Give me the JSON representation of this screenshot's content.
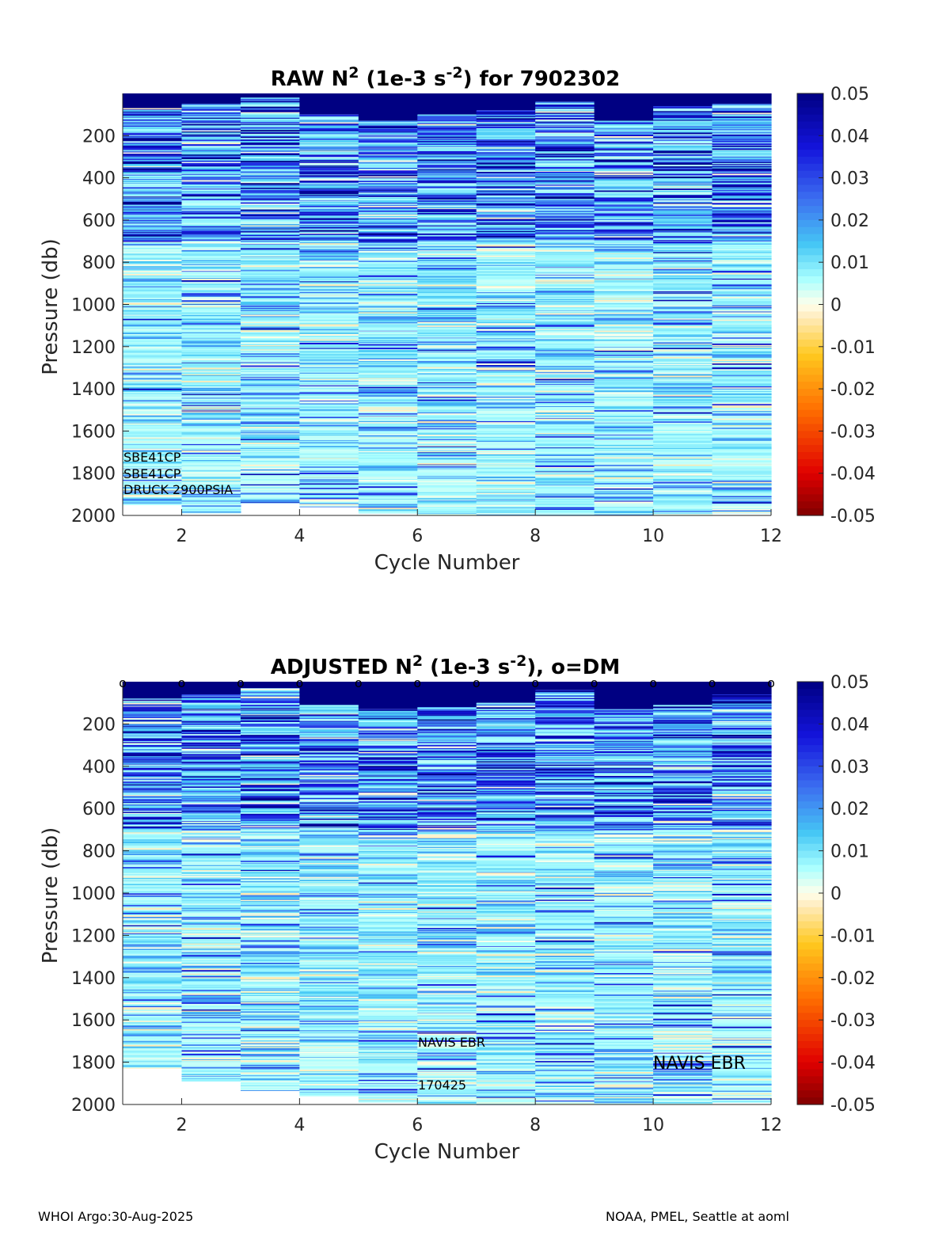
{
  "chart_data": [
    {
      "type": "heatmap",
      "title_main": "RAW N",
      "title_sup1": "2",
      "title_mid": " (1e-3 s",
      "title_sup2": "-2",
      "title_end": ") for 7902302",
      "xlabel": "Cycle Number",
      "ylabel": "Pressure (db)",
      "xlim": [
        1,
        12
      ],
      "ylim": [
        2000,
        0
      ],
      "xticks": [
        "2",
        "4",
        "6",
        "8",
        "10",
        "12"
      ],
      "yticks": [
        "200",
        "400",
        "600",
        "800",
        "1000",
        "1200",
        "1400",
        "1600",
        "1800",
        "2000"
      ],
      "clim": [
        -0.05,
        0.05
      ],
      "colorbar_ticks": [
        "0.05",
        "0.04",
        "0.03",
        "0.02",
        "0.01",
        "0",
        "-0.01",
        "-0.02",
        "-0.03",
        "-0.04",
        "-0.05"
      ],
      "cycles": [
        1,
        2,
        3,
        4,
        5,
        6,
        7,
        8,
        9,
        10,
        11
      ],
      "profile_max_pressure": [
        1950,
        1990,
        1940,
        1960,
        1990,
        2000,
        2000,
        2000,
        2000,
        2000,
        1990
      ],
      "surface_max_value_depth": [
        70,
        50,
        20,
        100,
        130,
        100,
        80,
        40,
        130,
        60,
        50
      ],
      "annotations": [
        "SBE41CP",
        "SBE41CP",
        "DRUCK 2900PSIA"
      ],
      "dm_markers": false
    },
    {
      "type": "heatmap",
      "title_main": "ADJUSTED N",
      "title_sup1": "2",
      "title_mid": " (1e-3 s",
      "title_sup2": "-2",
      "title_end": "), o=DM",
      "xlabel": "Cycle Number",
      "ylabel": "Pressure (db)",
      "xlim": [
        1,
        12
      ],
      "ylim": [
        2000,
        0
      ],
      "xticks": [
        "2",
        "4",
        "6",
        "8",
        "10",
        "12"
      ],
      "yticks": [
        "200",
        "400",
        "600",
        "800",
        "1000",
        "1200",
        "1400",
        "1600",
        "1800",
        "2000"
      ],
      "clim": [
        -0.05,
        0.05
      ],
      "colorbar_ticks": [
        "0.05",
        "0.04",
        "0.03",
        "0.02",
        "0.01",
        "0",
        "-0.01",
        "-0.02",
        "-0.03",
        "-0.04",
        "-0.05"
      ],
      "cycles": [
        1,
        2,
        3,
        4,
        5,
        6,
        7,
        8,
        9,
        10,
        11
      ],
      "profile_max_pressure": [
        1830,
        1890,
        1935,
        1960,
        1990,
        2000,
        2000,
        2000,
        2000,
        2000,
        1990
      ],
      "surface_max_value_depth": [
        80,
        60,
        30,
        110,
        130,
        120,
        100,
        40,
        130,
        110,
        60
      ],
      "dm_marker_cycles": [
        1,
        2,
        3,
        4,
        5,
        6,
        7,
        8,
        9,
        10,
        11,
        12
      ],
      "dm_marker_glyph": "o",
      "annotations": [
        "NAVIS EBR",
        "170425"
      ],
      "annotation_right": "NAVIS EBR",
      "dm_markers": true
    }
  ],
  "footer": {
    "left": "WHOI Argo:30-Aug-2025",
    "right": "NOAA, PMEL, Seattle at aoml"
  }
}
